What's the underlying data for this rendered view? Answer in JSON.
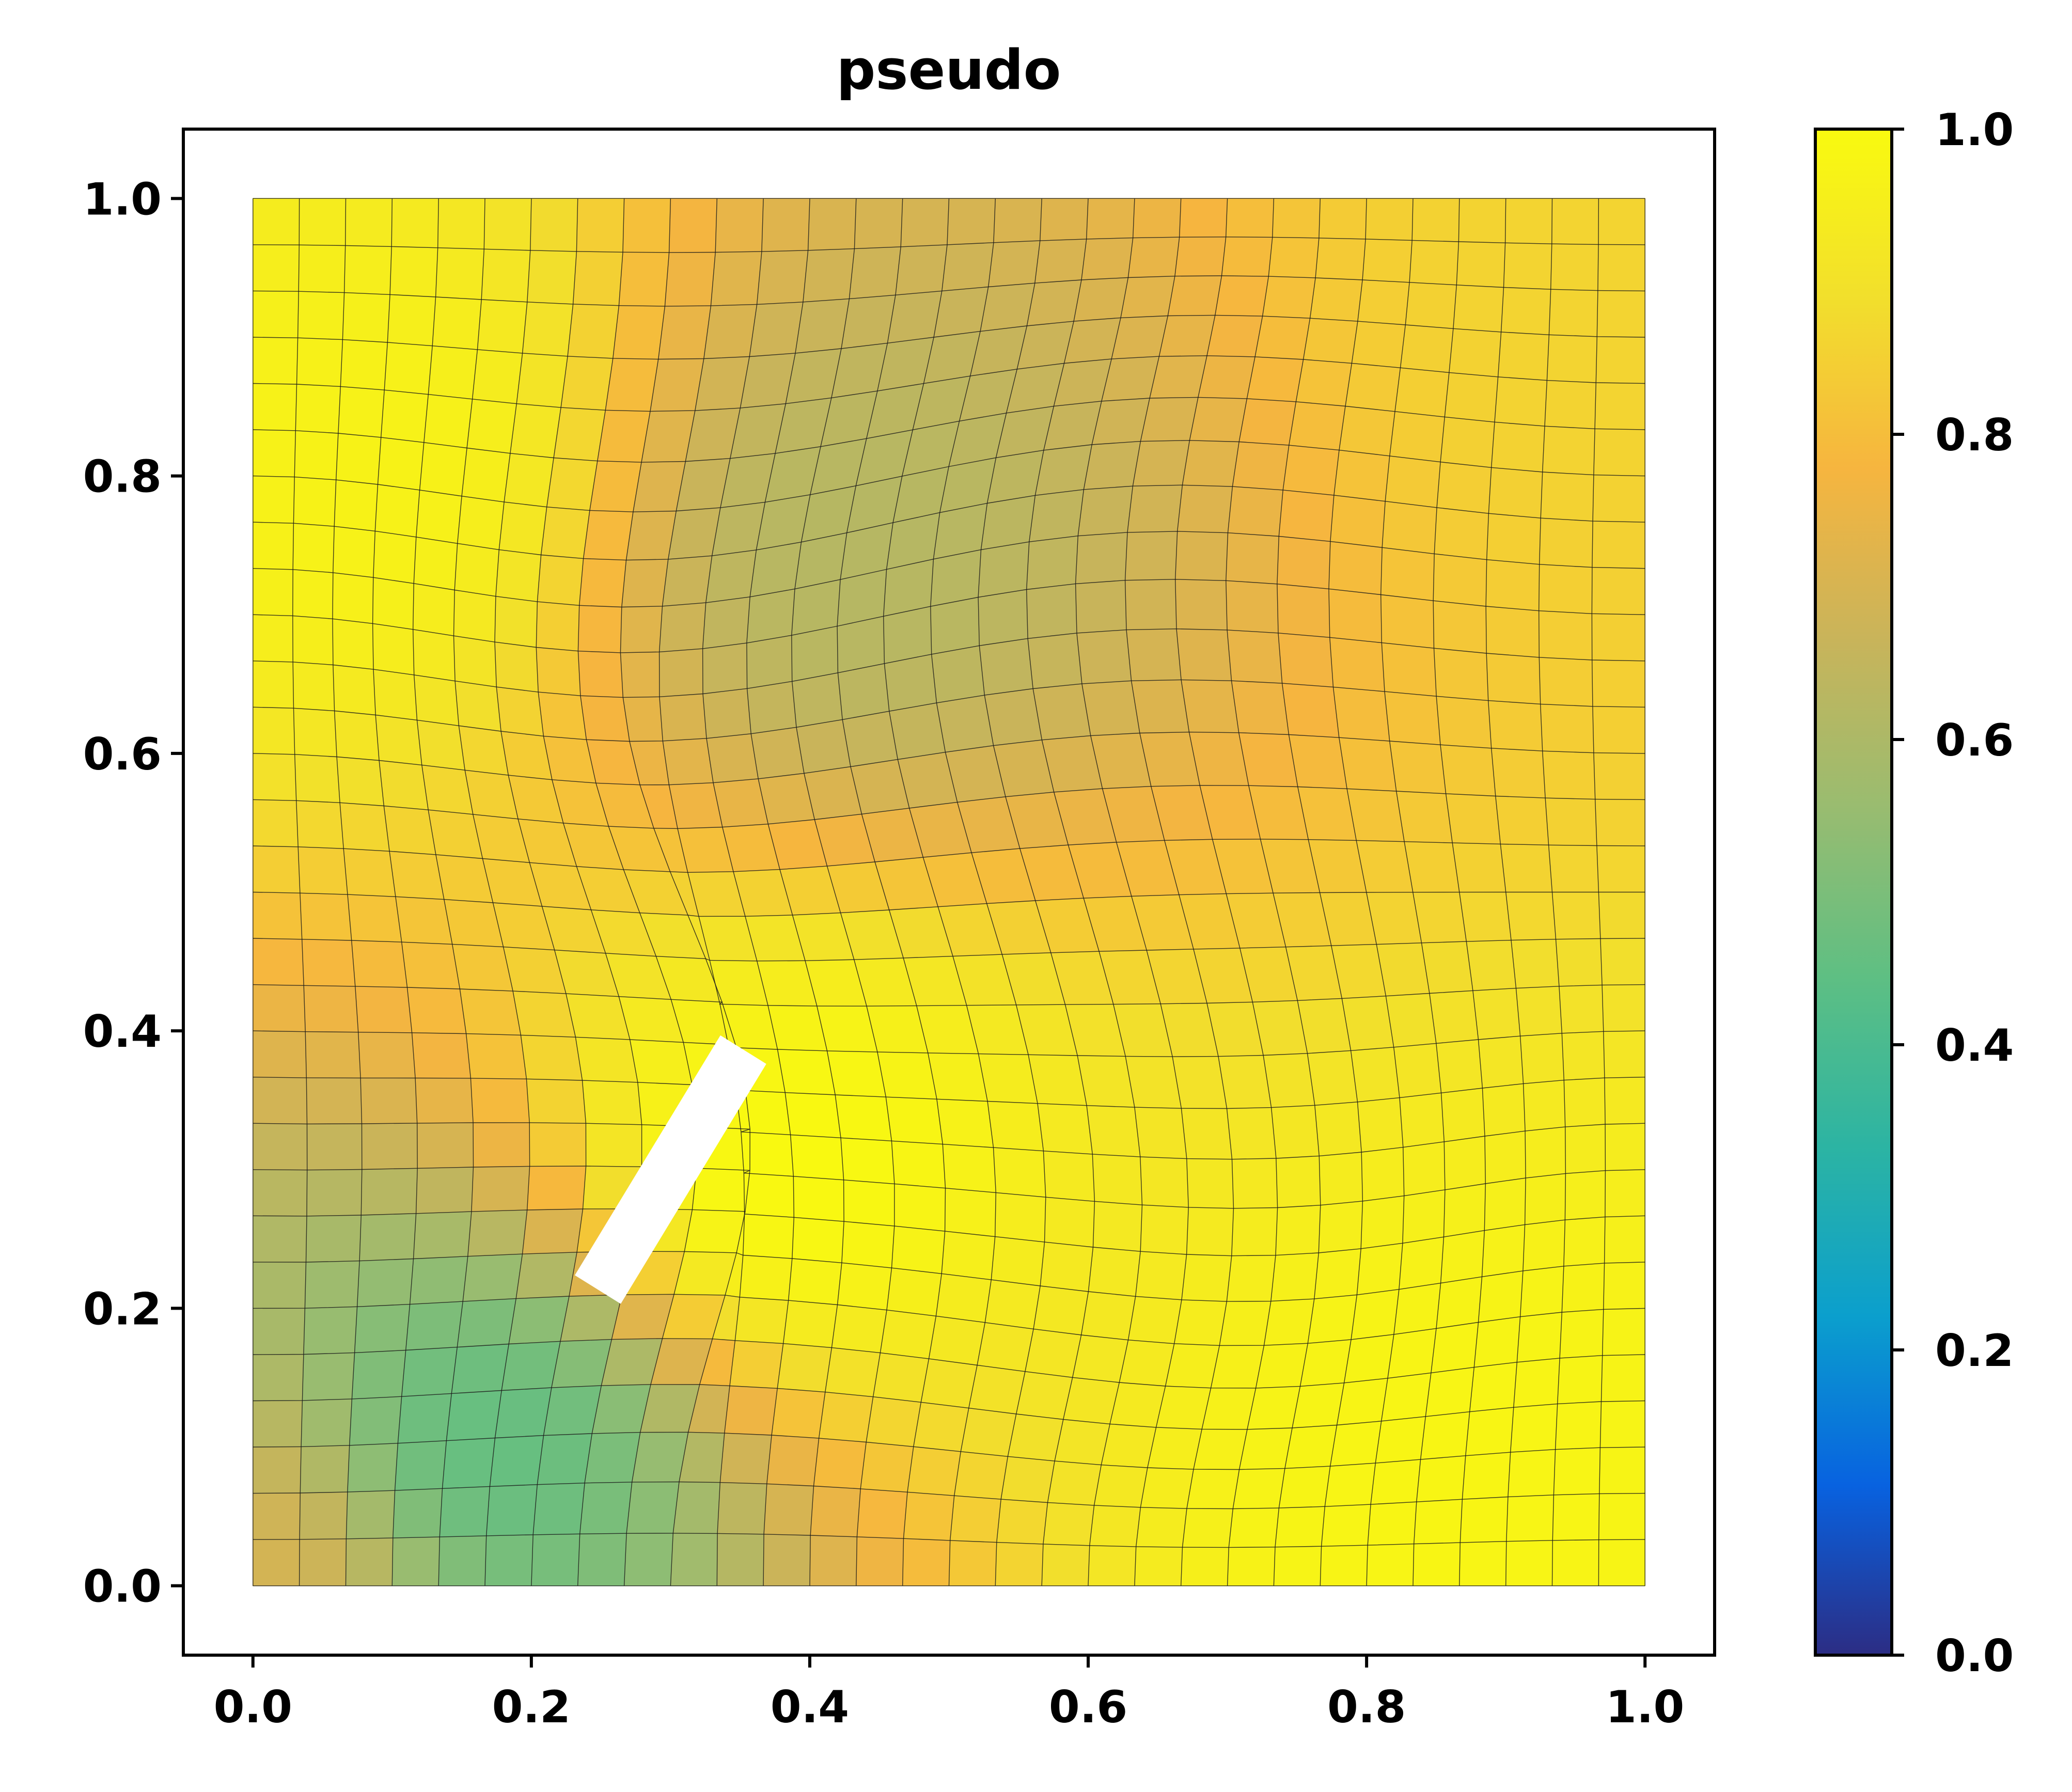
{
  "chart_data": {
    "type": "heatmap",
    "title": "pseudo",
    "xlabel": "",
    "ylabel": "",
    "xlim": [
      -0.05,
      1.05
    ],
    "ylim": [
      -0.05,
      1.05
    ],
    "x_ticks": [
      "0.0",
      "0.2",
      "0.4",
      "0.6",
      "0.8",
      "1.0"
    ],
    "y_ticks": [
      "0.0",
      "0.2",
      "0.4",
      "0.6",
      "0.8",
      "1.0"
    ],
    "colorbar": {
      "range": [
        0.0,
        1.0
      ],
      "ticks": [
        "0.0",
        "0.2",
        "0.4",
        "0.6",
        "0.8",
        "1.0"
      ],
      "colormap": [
        "#2c2d84",
        "#0862e0",
        "#0b9fcd",
        "#2cb4a3",
        "#5ebf83",
        "#99bc70",
        "#c9b45a",
        "#f6b53f",
        "#f2df2c",
        "#f9fa0f"
      ]
    },
    "hole": [
      [
        0.232,
        0.224
      ],
      [
        0.336,
        0.396
      ],
      [
        0.368,
        0.376
      ],
      [
        0.264,
        0.204
      ]
    ],
    "grid": "curvilinear mesh, 30 x 30 cells, thin black lines",
    "value_features": [
      {
        "x": 0.17,
        "y": 0.1,
        "value": 0.45
      },
      {
        "x": 0.08,
        "y": 0.8,
        "value": 0.97
      },
      {
        "x": 0.85,
        "y": 0.07,
        "value": 0.98
      },
      {
        "x": 0.38,
        "y": 0.3,
        "value": 1.0
      },
      {
        "x": 0.43,
        "y": 0.74,
        "value": 0.62
      },
      {
        "x": 1.0,
        "y": 0.95,
        "value": 0.86
      },
      {
        "x": 0.0,
        "y": 0.0,
        "value": 0.7
      }
    ]
  }
}
